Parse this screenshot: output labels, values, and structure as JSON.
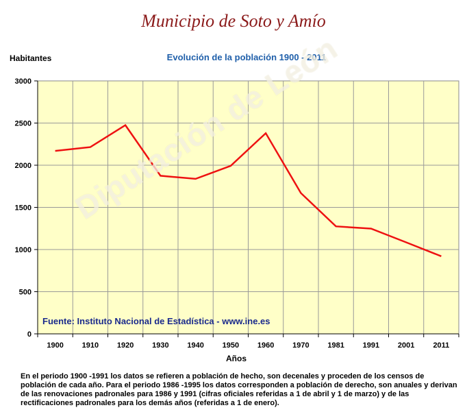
{
  "header": {
    "title": "Municipio de Soto y Amío",
    "watermark": "Diputación de León"
  },
  "source_text": "Fuente: Instituto Nacional de Estadística - www.ine.es",
  "footnote": "En el periodo 1900 -1991 los datos se refieren a población de hecho, son decenales y proceden de los censos de población de cada año. Para el periodo 1986 -1995 los datos corresponden a población de derecho, son anuales y derivan de las renovaciones padronales para 1986 y 1991 (cifras oficiales referidas a 1 de abril y 1 de marzo) y de las rectificaciones padronales para los demás años (referidas a 1 de enero).",
  "chart_data": {
    "type": "line",
    "title": "Evolución de la población 1900 - 2011",
    "xlabel": "Años",
    "ylabel": "Habitantes",
    "categories": [
      "1900",
      "1910",
      "1920",
      "1930",
      "1940",
      "1950",
      "1960",
      "1970",
      "1981",
      "1991",
      "2001",
      "2011"
    ],
    "series": [
      {
        "values": [
          2170,
          2215,
          2475,
          1875,
          1838,
          1993,
          2380,
          1670,
          1275,
          1248,
          1085,
          920
        ]
      }
    ],
    "ylim": [
      0,
      3000
    ],
    "yticks": [
      "0",
      "500",
      "1000",
      "1500",
      "2000",
      "2500",
      "3000"
    ],
    "grid": true,
    "colors": {
      "plot_bg": "#ffffc8",
      "line": "#ee1111",
      "grid": "#999999"
    }
  }
}
